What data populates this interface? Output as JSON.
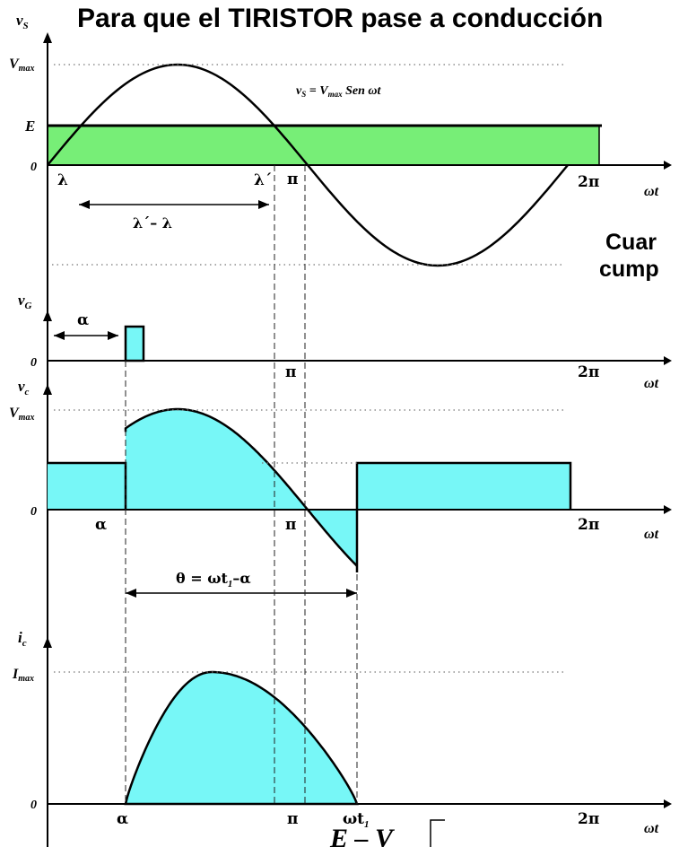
{
  "header": {
    "title": "Para que el TIRISTOR pase a conducción",
    "side_text_line1": "Cuar",
    "side_text_line2": "cump"
  },
  "panel_vs": {
    "y_label": "v",
    "y_label_sub": "S",
    "vmax_label": "V",
    "vmax_label_sub": "max",
    "e_label": "E",
    "zero_label": "0",
    "equation": "v",
    "equation_sub": "S",
    "equation_rest": " = V",
    "equation_rest_sub": "max",
    "equation_tail": " Sen ωt",
    "lambda_label": "λ",
    "lambda_prime_label": "λ´",
    "pi_label": "π",
    "two_pi_label": "2π",
    "omega_t_label": "ωt",
    "span_label": "λ´– λ"
  },
  "panel_vg": {
    "y_label": "v",
    "y_label_sub": "G",
    "zero_label": "0",
    "alpha_label": "α",
    "pi_label": "π",
    "two_pi_label": "2π",
    "omega_t_label": "ωt"
  },
  "panel_vc": {
    "y_label": "v",
    "y_label_sub": "c",
    "vmax_label": "V",
    "vmax_label_sub": "max",
    "zero_label": "0",
    "alpha_label": "α",
    "pi_label": "π",
    "two_pi_label": "2π",
    "omega_t_label": "ωt",
    "theta_label": "θ = ωt",
    "theta_label_sub": "1",
    "theta_label_tail": "–α"
  },
  "panel_ic": {
    "y_label": "i",
    "y_label_sub": "c",
    "imax_label": "I",
    "imax_label_sub": "max",
    "zero_label": "0",
    "alpha_label": "α",
    "pi_label": "π",
    "omega_t1_label": "ωt",
    "omega_t1_label_sub": "1",
    "two_pi_label": "2π",
    "omega_t_label": "ωt"
  },
  "footer": {
    "formula_text": "E – V"
  },
  "colors": {
    "green_fill": "#77ee77",
    "cyan_fill": "#77f7f7",
    "curve": "#000000"
  }
}
